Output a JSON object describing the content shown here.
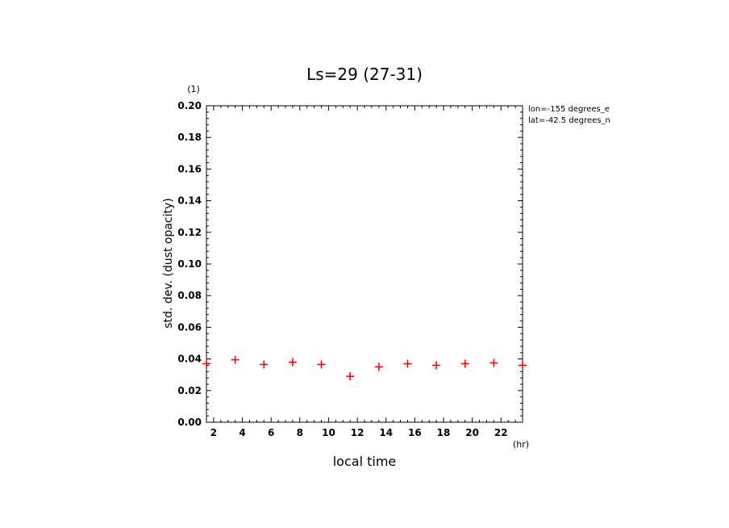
{
  "chart_data": {
    "type": "scatter",
    "title": "Ls=29 (27-31)",
    "xlabel": "local time",
    "x_unit": "(hr)",
    "ylabel": "std. dev. (dust opacity)",
    "y_unit": "(1)",
    "annotations": [
      "lon=-155 degrees_e",
      "lat=-42.5 degrees_n"
    ],
    "xlim": [
      1.5,
      23.5
    ],
    "ylim": [
      0,
      0.2
    ],
    "x_ticks": [
      2,
      4,
      6,
      8,
      10,
      12,
      14,
      16,
      18,
      20,
      22
    ],
    "y_ticks": [
      0.0,
      0.02,
      0.04,
      0.06,
      0.08,
      0.1,
      0.12,
      0.14,
      0.16,
      0.18,
      0.2
    ],
    "y_tick_labels": [
      "0.00",
      "0.02",
      "0.04",
      "0.06",
      "0.08",
      "0.10",
      "0.12",
      "0.14",
      "0.16",
      "0.18",
      "0.20"
    ],
    "grid": false,
    "marker": "plus",
    "marker_color": "#ff0000",
    "series": [
      {
        "x": [
          1.5,
          3.5,
          5.5,
          7.5,
          9.5,
          11.5,
          13.5,
          15.5,
          17.5,
          19.5,
          21.5,
          23.5
        ],
        "y": [
          0.037,
          0.0395,
          0.0365,
          0.038,
          0.0365,
          0.029,
          0.035,
          0.037,
          0.036,
          0.037,
          0.0375,
          0.036
        ]
      }
    ]
  }
}
